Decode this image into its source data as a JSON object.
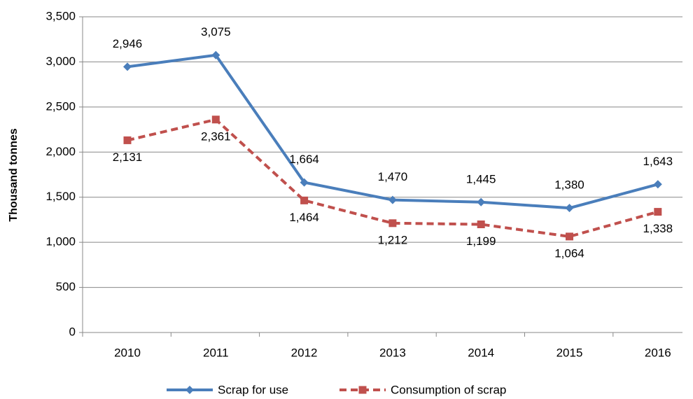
{
  "chart_data": {
    "type": "line",
    "y_axis_label": "Thousand tonnes",
    "categories": [
      "2010",
      "2011",
      "2012",
      "2013",
      "2014",
      "2015",
      "2016"
    ],
    "series": [
      {
        "name": "Scrap for use",
        "color": "#4a7ebb",
        "values": [
          2946,
          3075,
          1664,
          1470,
          1445,
          1380,
          1643
        ],
        "value_labels": [
          "2,946",
          "3,075",
          "1,664",
          "1,470",
          "1,445",
          "1,380",
          "1,643"
        ]
      },
      {
        "name": "Consumption of scrap",
        "color": "#c0504d",
        "values": [
          2131,
          2361,
          1464,
          1212,
          1199,
          1064,
          1338
        ],
        "value_labels": [
          "2,131",
          "2,361",
          "1,464",
          "1,212",
          "1,199",
          "1,064",
          "1,338"
        ]
      }
    ],
    "ylim": [
      0,
      3500
    ],
    "yticks": [
      0,
      500,
      {
        "value": 1000,
        "label": "1,000"
      },
      {
        "value": 1500,
        "label": "1,500"
      },
      {
        "value": 2000,
        "label": "2,000"
      },
      {
        "value": 2500,
        "label": "2,500"
      },
      {
        "value": 3000,
        "label": "3,000"
      },
      {
        "value": 3500,
        "label": "3,500"
      }
    ],
    "grid": true
  }
}
